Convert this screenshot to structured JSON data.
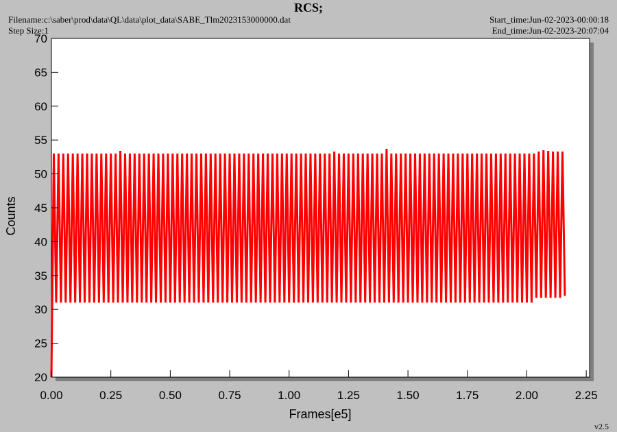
{
  "chart_data": {
    "type": "line",
    "title": "RCS;",
    "filename": "Filename:c:\\saber\\prod\\data\\QL\\data\\plot_data\\SABE_Tlm2023153000000.dat",
    "step_size": "Step Size:1",
    "start_time": "Start_time:Jun-02-2023-00:00:18",
    "end_time": "End_time:Jun-02-2023-20:07:04",
    "version": "v2.5",
    "x_label": "Frames[e5]",
    "y_label": "Counts",
    "xlim": [
      0,
      2.264
    ],
    "ylim": [
      20,
      70
    ],
    "xticks": [
      {
        "value": 0,
        "label": "0.00"
      },
      {
        "value": 0.25,
        "label": "0.25"
      },
      {
        "value": 0.5,
        "label": "0.50"
      },
      {
        "value": 0.75,
        "label": "0.75"
      },
      {
        "value": 1,
        "label": "1.00"
      },
      {
        "value": 1.25,
        "label": "1.25"
      },
      {
        "value": 1.5,
        "label": "1.50"
      },
      {
        "value": 1.75,
        "label": "1.75"
      },
      {
        "value": 2,
        "label": "2.00"
      },
      {
        "value": 2.25,
        "label": "2.25"
      }
    ],
    "yticks": [
      20,
      25,
      30,
      35,
      40,
      45,
      50,
      55,
      60,
      65,
      70
    ],
    "series": [
      {
        "color": "#ff0000",
        "x": [
          0,
          0.01,
          0.02,
          0.03,
          0.04,
          0.05,
          0.06,
          0.07,
          0.08,
          0.09,
          0.1,
          0.11,
          0.12,
          0.13,
          0.14,
          0.15,
          0.16,
          0.17,
          0.18,
          0.19,
          0.2,
          0.21,
          0.22,
          0.23,
          0.24,
          0.25,
          0.26,
          0.27,
          0.28,
          0.29,
          0.3,
          0.31,
          0.32,
          0.33,
          0.34,
          0.35,
          0.36,
          0.37,
          0.38,
          0.39,
          0.4,
          0.41,
          0.42,
          0.43,
          0.44,
          0.45,
          0.46,
          0.47,
          0.48,
          0.49,
          0.5,
          0.51,
          0.52,
          0.53,
          0.54,
          0.55,
          0.56,
          0.57,
          0.58,
          0.59,
          0.6,
          0.61,
          0.62,
          0.63,
          0.64,
          0.65,
          0.66,
          0.67,
          0.68,
          0.69,
          0.7,
          0.71,
          0.72,
          0.73,
          0.74,
          0.75,
          0.76,
          0.77,
          0.78,
          0.79,
          0.8,
          0.81,
          0.82,
          0.83,
          0.84,
          0.85,
          0.86,
          0.87,
          0.88,
          0.89,
          0.9,
          0.91,
          0.92,
          0.93,
          0.94,
          0.95,
          0.96,
          0.97,
          0.98,
          0.99,
          1,
          1.01,
          1.02,
          1.03,
          1.04,
          1.05,
          1.06,
          1.07,
          1.08,
          1.09,
          1.1,
          1.11,
          1.12,
          1.13,
          1.14,
          1.15,
          1.16,
          1.17,
          1.18,
          1.19,
          1.2,
          1.21,
          1.22,
          1.23,
          1.24,
          1.25,
          1.26,
          1.27,
          1.28,
          1.29,
          1.3,
          1.31,
          1.32,
          1.33,
          1.34,
          1.35,
          1.36,
          1.37,
          1.38,
          1.39,
          1.4,
          1.41,
          1.42,
          1.43,
          1.44,
          1.45,
          1.46,
          1.47,
          1.48,
          1.49,
          1.5,
          1.51,
          1.52,
          1.53,
          1.54,
          1.55,
          1.56,
          1.57,
          1.58,
          1.59,
          1.6,
          1.61,
          1.62,
          1.63,
          1.64,
          1.65,
          1.66,
          1.67,
          1.68,
          1.69,
          1.7,
          1.71,
          1.72,
          1.73,
          1.74,
          1.75,
          1.76,
          1.77,
          1.78,
          1.79,
          1.8,
          1.81,
          1.82,
          1.83,
          1.84,
          1.85,
          1.86,
          1.87,
          1.88,
          1.89,
          1.9,
          1.91,
          1.92,
          1.93,
          1.94,
          1.95,
          1.96,
          1.97,
          1.98,
          1.99,
          2,
          2.01,
          2.02,
          2.03,
          2.04,
          2.05,
          2.06,
          2.07,
          2.08,
          2.09,
          2.1,
          2.11,
          2.12,
          2.13,
          2.14,
          2.15,
          2.16
        ],
        "values": [
          20,
          53,
          31,
          53,
          31,
          53,
          31,
          53,
          31,
          53,
          31,
          53,
          31,
          53,
          31,
          53,
          31,
          53,
          31,
          53,
          31,
          53,
          31,
          53,
          31,
          53,
          31,
          53,
          31,
          53.4,
          31,
          53,
          31,
          53,
          31,
          53,
          31,
          53,
          31,
          53,
          31,
          53,
          31,
          53,
          31,
          53,
          31,
          53,
          31,
          53,
          31,
          53,
          31,
          53,
          31,
          53,
          31,
          53,
          31,
          53,
          31,
          53,
          31,
          53,
          31,
          53,
          31,
          53,
          31,
          53,
          31,
          53,
          31,
          53,
          31,
          53,
          31,
          53,
          31,
          53,
          31,
          53,
          31,
          53,
          31,
          53,
          31,
          53,
          31,
          53,
          31,
          53,
          31,
          53,
          31,
          53,
          31,
          53,
          31,
          53,
          31,
          53,
          31,
          53,
          31,
          53,
          31,
          53,
          31,
          53,
          31,
          53,
          31,
          53,
          31,
          53,
          31,
          53,
          31,
          53.3,
          31,
          53,
          31,
          53,
          31,
          53,
          31,
          53,
          31,
          53,
          31,
          53,
          31,
          53,
          31,
          53,
          31,
          53,
          31,
          53,
          31,
          53.7,
          31,
          53,
          31,
          53,
          31,
          53,
          31,
          53,
          31,
          53,
          31,
          53,
          31,
          53,
          31,
          53,
          31,
          53,
          31,
          53,
          31,
          53,
          31,
          53,
          31,
          53,
          31,
          53,
          31,
          53,
          31,
          53,
          31,
          53,
          31,
          53,
          31,
          53,
          31,
          53,
          31,
          53,
          31,
          53,
          31,
          53,
          31,
          53,
          31,
          53,
          31,
          53,
          31,
          53,
          31,
          53,
          31,
          53,
          31,
          53,
          31,
          53,
          31.7,
          53.3,
          31.7,
          53.5,
          31.7,
          53.4,
          31.7,
          53.3,
          31.7,
          53.3,
          31.7,
          53.3,
          32
        ]
      }
    ]
  }
}
